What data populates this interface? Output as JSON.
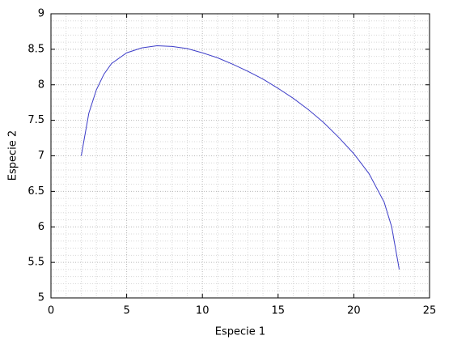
{
  "chart_data": {
    "type": "line",
    "xlabel": "Especie 1",
    "ylabel": "Especie 2",
    "x": [
      2,
      2.5,
      3,
      3.5,
      4,
      5,
      6,
      7,
      8,
      9,
      10,
      11,
      12,
      13,
      14,
      15,
      16,
      17,
      18,
      19,
      20,
      21,
      22,
      22.5,
      23
    ],
    "series": [
      {
        "color": "#3c3cc8",
        "values": [
          7.0,
          7.6,
          7.93,
          8.15,
          8.3,
          8.45,
          8.52,
          8.55,
          8.54,
          8.51,
          8.45,
          8.38,
          8.29,
          8.19,
          8.08,
          7.95,
          7.81,
          7.65,
          7.47,
          7.26,
          7.03,
          6.75,
          6.35,
          6.0,
          5.4
        ]
      }
    ],
    "xlim": [
      0,
      25
    ],
    "xticks": [
      0,
      5,
      10,
      15,
      20,
      25
    ],
    "ylim": [
      5,
      9
    ],
    "yticks": [
      5,
      5.5,
      6,
      6.5,
      7,
      7.5,
      8,
      8.5,
      9
    ],
    "grid": true
  }
}
